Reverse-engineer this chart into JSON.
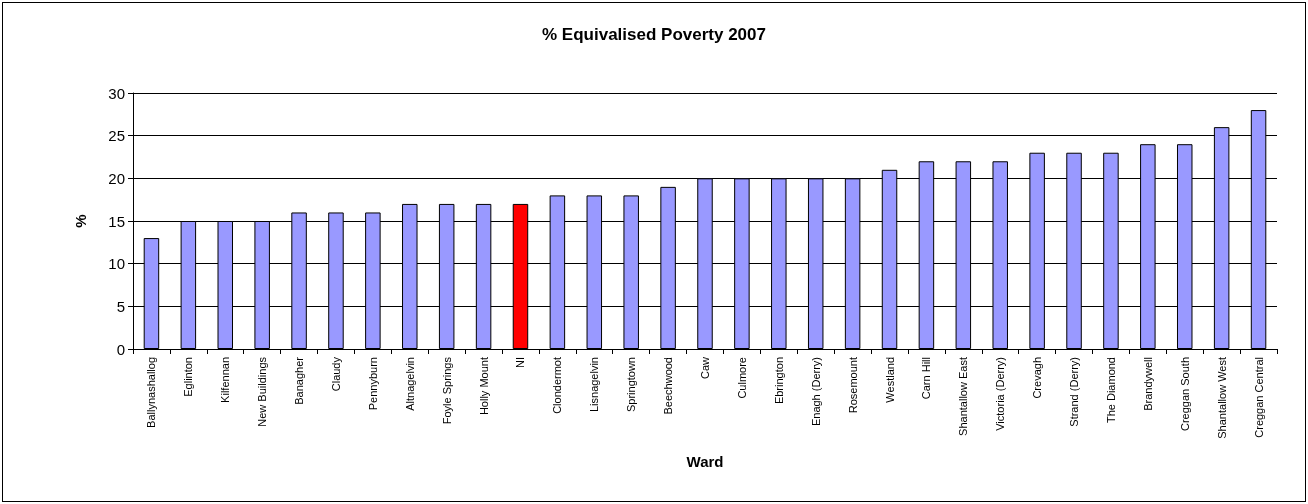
{
  "chart_data": {
    "type": "bar",
    "title": "% Equivalised Poverty 2007",
    "xlabel": "Ward",
    "ylabel": "%",
    "categories": [
      "Ballynashallog",
      "Eglinton",
      "Kilfennan",
      "New Buildings",
      "Banagher",
      "Claudy",
      "Pennyburn",
      "Altnagelvin",
      "Foyle Springs",
      "Holly Mount",
      "NI",
      "Clondermot",
      "Lisnagelvin",
      "Springtown",
      "Beechwood",
      "Caw",
      "Culmore",
      "Ebrington",
      "Enagh (Derry)",
      "Rosemount",
      "Westland",
      "Carn Hill",
      "Shantallow East",
      "Victoria (Derry)",
      "Crevagh",
      "Strand (Derry)",
      "The Diamond",
      "Brandywell",
      "Creggan South",
      "Shantallow West",
      "Creggan Central"
    ],
    "values": [
      13,
      15,
      15,
      15,
      16,
      16,
      16,
      17,
      17,
      17,
      17,
      18,
      18,
      18,
      19,
      20,
      20,
      20,
      20,
      20,
      21,
      22,
      22,
      22,
      23,
      23,
      23,
      24,
      24,
      26,
      28
    ],
    "colors": [
      "#9999ff",
      "#9999ff",
      "#9999ff",
      "#9999ff",
      "#9999ff",
      "#9999ff",
      "#9999ff",
      "#9999ff",
      "#9999ff",
      "#9999ff",
      "#ff0000",
      "#9999ff",
      "#9999ff",
      "#9999ff",
      "#9999ff",
      "#9999ff",
      "#9999ff",
      "#9999ff",
      "#9999ff",
      "#9999ff",
      "#9999ff",
      "#9999ff",
      "#9999ff",
      "#9999ff",
      "#9999ff",
      "#9999ff",
      "#9999ff",
      "#9999ff",
      "#9999ff",
      "#9999ff",
      "#9999ff"
    ],
    "ylim": [
      0,
      30
    ],
    "yticks": [
      0,
      5,
      10,
      15,
      20,
      25,
      30
    ],
    "grid": "y"
  }
}
